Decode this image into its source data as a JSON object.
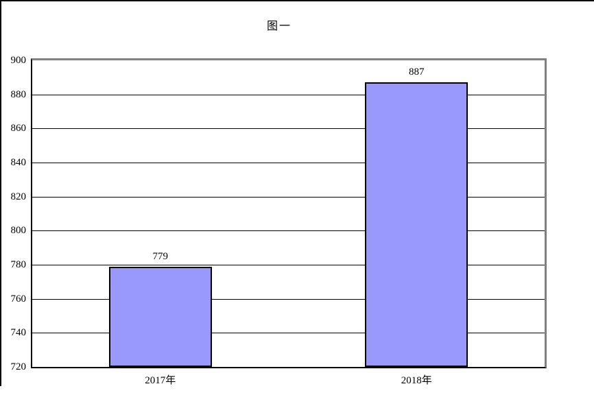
{
  "chart_data": {
    "type": "bar",
    "title": "图一",
    "categories": [
      "2017年",
      "2018年"
    ],
    "values": [
      779,
      887
    ],
    "data_labels": [
      "779",
      "887"
    ],
    "xlabel": "",
    "ylabel": "",
    "ylim": [
      720,
      900
    ],
    "y_step": 20,
    "y_tick_labels": [
      "720",
      "740",
      "760",
      "780",
      "800",
      "820",
      "840",
      "860",
      "880",
      "900"
    ],
    "grid": true,
    "legend_position": "none",
    "colors": {
      "bar_fill": "#9999FB",
      "bar_border": "#000000",
      "gridline": "#000000",
      "axis_left_bottom": "#000000",
      "frame_top_right": "#808080",
      "page_border": "#000000",
      "background": "#FFFFFF",
      "text": "#000000"
    }
  }
}
